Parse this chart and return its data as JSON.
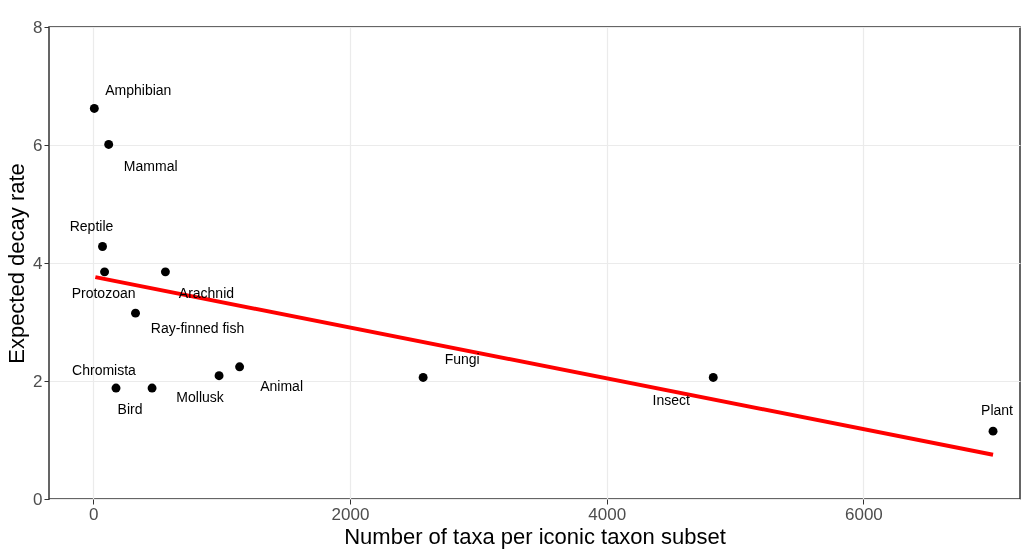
{
  "chart_data": {
    "type": "scatter",
    "xlabel": "Number of taxa per iconic taxon subset",
    "ylabel": "Expected decay rate",
    "xlim": [
      -345,
      7220
    ],
    "xticks": [
      0,
      2000,
      4000,
      6000
    ],
    "ylim": [
      0,
      8
    ],
    "yticks": [
      0,
      2,
      4,
      6,
      8
    ],
    "grid": true,
    "marker": "circle",
    "series": [
      {
        "color": "#000000",
        "x": [
          8,
          120,
          72,
          88,
          562,
          329,
          177,
          458,
          980,
          1140,
          2570,
          4830,
          7010
        ],
        "values": [
          6.62,
          6.01,
          4.28,
          3.85,
          3.85,
          3.15,
          1.88,
          1.88,
          2.09,
          2.24,
          2.06,
          2.06,
          1.15
        ]
      },
      {
        "type": "line",
        "marker": "none",
        "line_style": "solid",
        "color": "#ff0000",
        "x": [
          16,
          7010
        ],
        "values": [
          3.76,
          0.75
        ]
      }
    ],
    "annotations": [
      {
        "text": "Amphibian",
        "x": 8,
        "y": 6.62
      },
      {
        "text": "Mammal",
        "x": 120,
        "y": 6.01
      },
      {
        "text": "Reptile",
        "x": 72,
        "y": 4.28
      },
      {
        "text": "Protozoan",
        "x": 88,
        "y": 3.85
      },
      {
        "text": "Arachnid",
        "x": 562,
        "y": 3.85
      },
      {
        "text": "Ray-finned fish",
        "x": 329,
        "y": 3.15
      },
      {
        "text": "Chromista",
        "x": 177,
        "y": 1.88
      },
      {
        "text": "Bird",
        "x": 458,
        "y": 1.88
      },
      {
        "text": "Mollusk",
        "x": 980,
        "y": 2.09
      },
      {
        "text": "Animal",
        "x": 1140,
        "y": 2.24
      },
      {
        "text": "Fungi",
        "x": 2570,
        "y": 2.06
      },
      {
        "text": "Insect",
        "x": 4830,
        "y": 2.06
      },
      {
        "text": "Plant",
        "x": 7010,
        "y": 1.15
      }
    ]
  }
}
